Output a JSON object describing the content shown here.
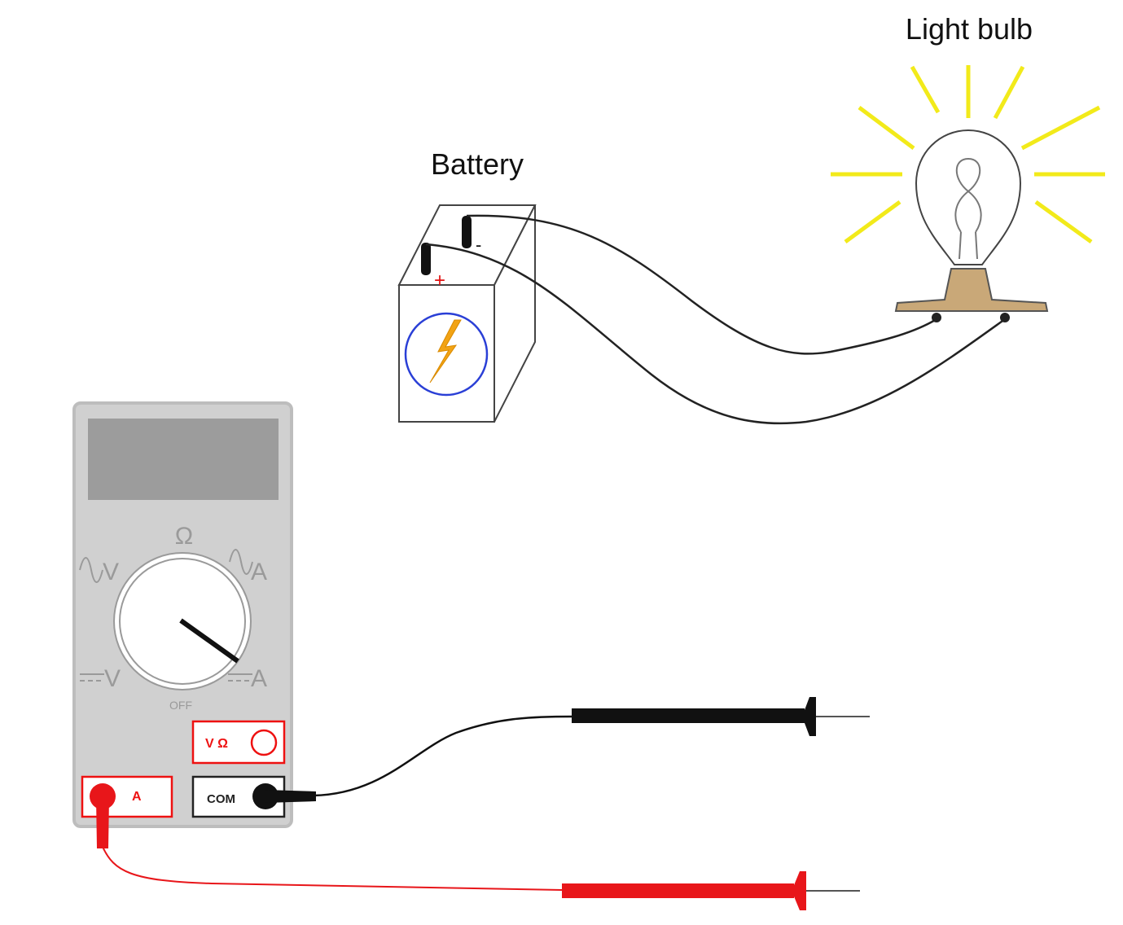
{
  "labels": {
    "battery": "Battery",
    "light_bulb": "Light bulb"
  },
  "battery": {
    "positive_symbol": "+",
    "negative_symbol": "-"
  },
  "multimeter": {
    "dial_labels": {
      "ohms": "Ω",
      "ac_volts": "V",
      "ac_amps": "A",
      "dc_volts": "V",
      "dc_amps": "A",
      "off": "OFF"
    },
    "jacks": {
      "volt_ohm": "V Ω",
      "amps": "A",
      "common": "COM"
    }
  },
  "colors": {
    "bulb_rays": "#f2ea1a",
    "bolt": "#f2a314",
    "battery_circle": "#2a3fd6",
    "positive": "#e11111",
    "lead_red": "#e8161a",
    "lead_black": "#111111",
    "meter_body": "#cfcfcf",
    "meter_display": "#9c9c9c",
    "bulb_base": "#c9a878"
  }
}
